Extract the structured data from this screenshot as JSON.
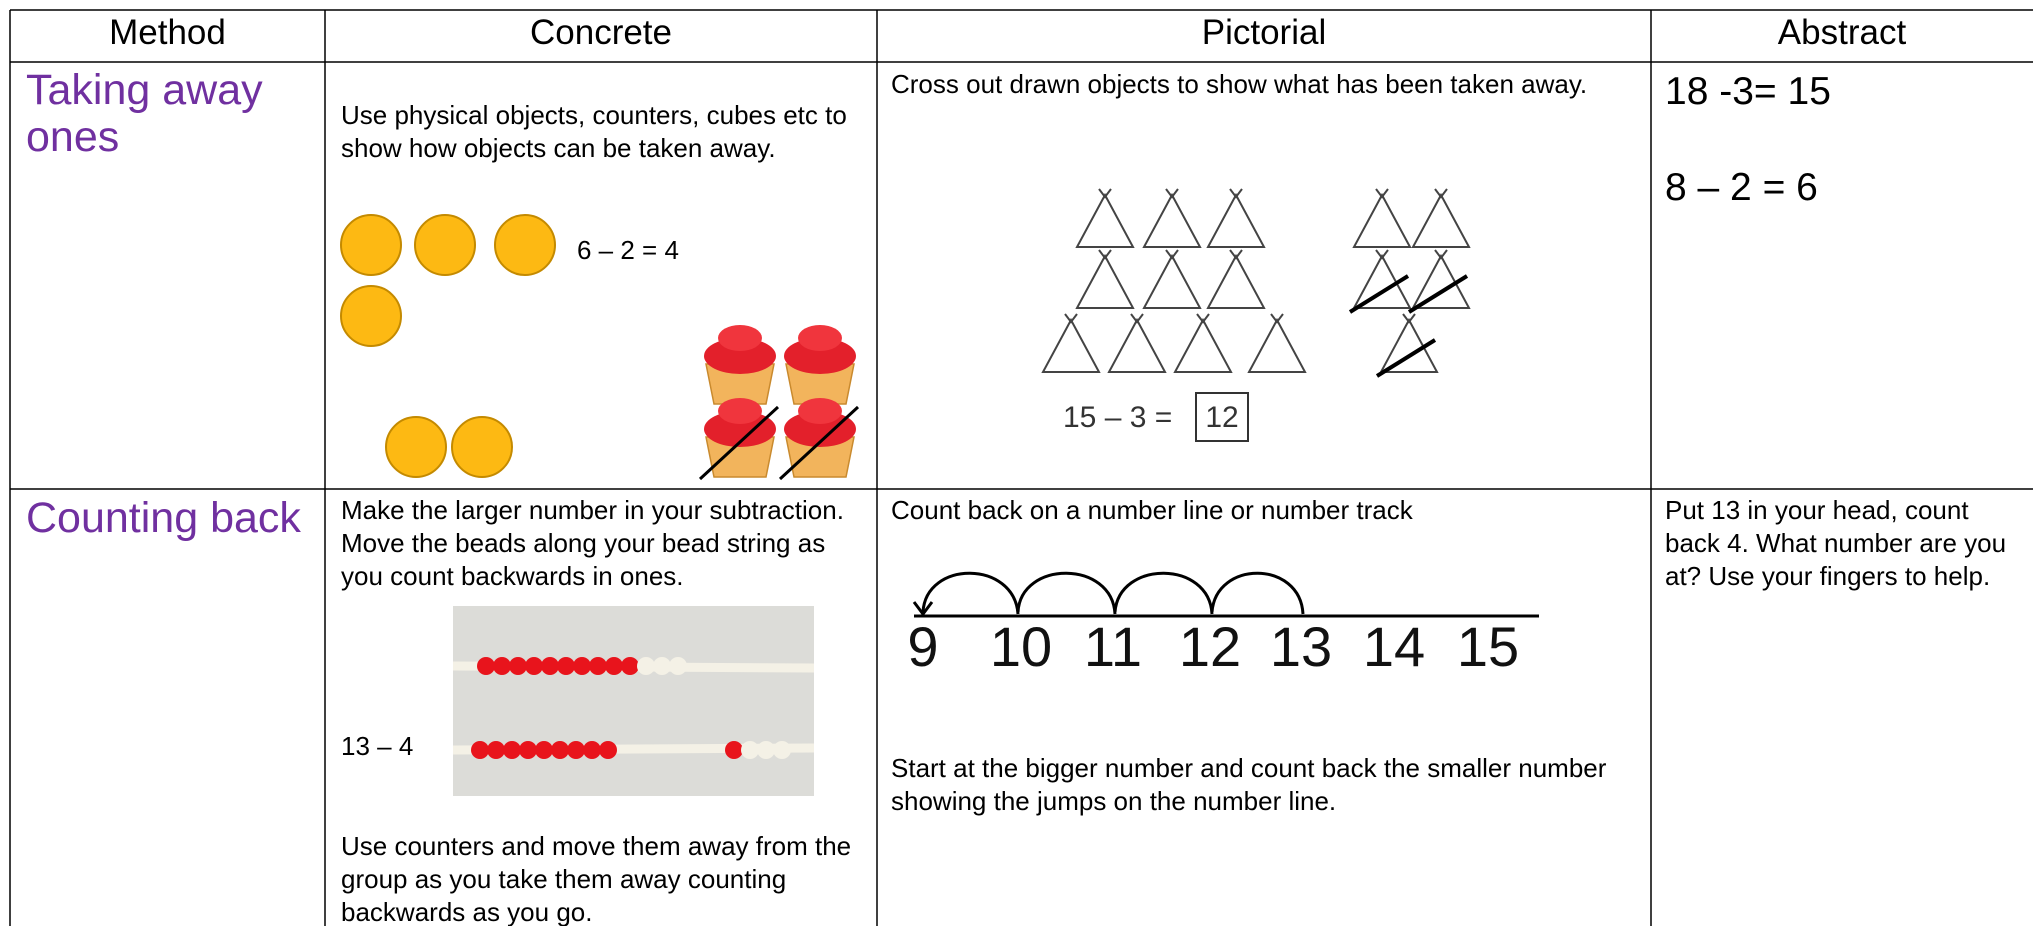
{
  "table": {
    "header": [
      "Method",
      "Concrete",
      "Pictorial",
      "Abstract"
    ],
    "rows": [
      {
        "method": "Taking away ones",
        "concrete": {
          "text": "Use physical objects, counters, cubes etc to show how objects can be taken away.",
          "equation": "6 – 2 = 4"
        },
        "pictorial": {
          "text": "Cross out drawn objects to show what has been taken away.",
          "equation": "15 – 3 =",
          "answer": "12"
        },
        "abstract": [
          "18 -3= 15",
          "8 – 2 = 6"
        ]
      },
      {
        "method": "Counting back",
        "concrete": {
          "text": "Make the larger number in your subtraction. Move the beads along your bead string as you count backwards in ones.",
          "equation": "13 – 4",
          "text2": "Use counters and move them away from the group as you take them away counting backwards as you go."
        },
        "pictorial": {
          "text": "Count back on a number line or number track",
          "number_line": [
            9,
            10,
            11,
            12,
            13,
            14,
            15
          ],
          "text2": "Start at the bigger number and count back the smaller number showing the jumps on the number line."
        },
        "abstract": "Put 13 in your head, count back 4. What number are you at? Use your fingers to help."
      }
    ]
  }
}
